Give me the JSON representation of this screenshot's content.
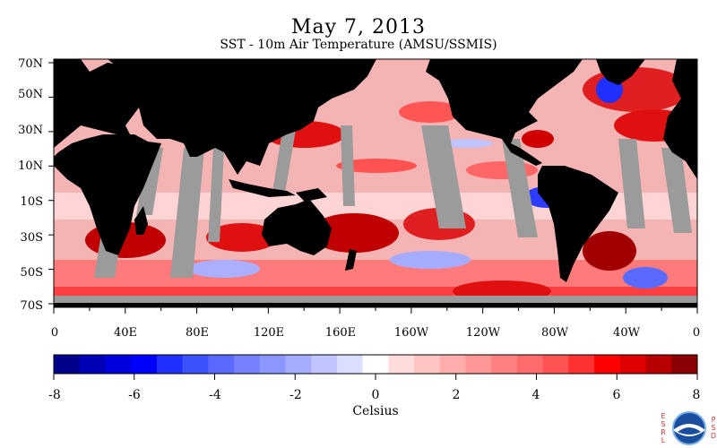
{
  "header": {
    "title": "May 7, 2013",
    "subtitle": "SST - 10m Air Temperature (AMSU/SSMIS)"
  },
  "map": {
    "lat_labels": [
      "70N",
      "50N",
      "30N",
      "10N",
      "10S",
      "30S",
      "50S",
      "70S"
    ],
    "lon_labels": [
      "0",
      "40E",
      "80E",
      "120E",
      "160E",
      "160W",
      "120W",
      "80W",
      "40W",
      "0"
    ],
    "colors": {
      "land": "#000000",
      "missing": "#9b9b9b",
      "ocean_base": "#f4b4b4"
    }
  },
  "colorbar": {
    "tick_labels": [
      "-8",
      "-6",
      "-4",
      "-2",
      "0",
      "2",
      "4",
      "6",
      "8"
    ],
    "units": "Celsius",
    "colors": [
      "#00008b",
      "#0000b8",
      "#0000de",
      "#0000ff",
      "#2030ff",
      "#3a52ff",
      "#5a6aff",
      "#7480ff",
      "#8c96ff",
      "#a6acff",
      "#c0c4ff",
      "#dcdeff",
      "#ffffff",
      "#ffdcdc",
      "#ffc4c4",
      "#ffacac",
      "#ff9696",
      "#ff8080",
      "#ff6a6a",
      "#ff5252",
      "#ff3030",
      "#ff0000",
      "#de0000",
      "#b80000",
      "#8b0000"
    ]
  },
  "logo": {
    "left_letters": "ESRL",
    "right_letters": "PSD",
    "badge": "NOAA"
  }
}
